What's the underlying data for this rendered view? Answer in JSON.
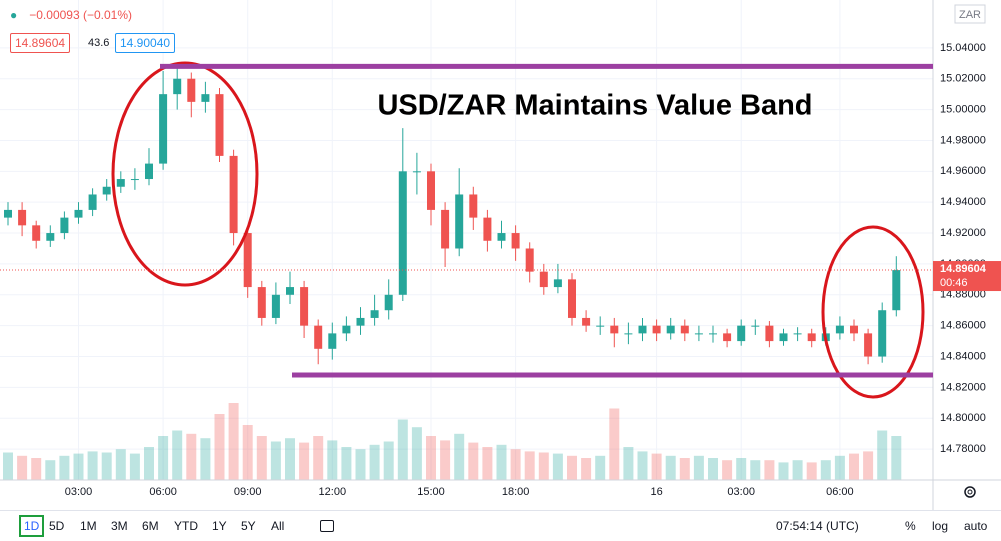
{
  "header": {
    "change": "−0.00093 (−0.01%)",
    "bid": "14.89604",
    "spread": "43.6",
    "ask": "14.90040"
  },
  "chart_data": {
    "type": "candlestick",
    "title": "USD/ZAR Maintains Value Band",
    "currency": "ZAR",
    "categories": [
      null,
      null,
      null,
      null,
      null,
      "03:00",
      null,
      null,
      null,
      null,
      null,
      "06:00",
      null,
      null,
      null,
      null,
      null,
      "09:00",
      null,
      null,
      null,
      null,
      null,
      "12:00",
      null,
      null,
      null,
      null,
      null,
      null,
      "15:00",
      null,
      null,
      null,
      null,
      null,
      "18:00",
      null,
      null,
      null,
      null,
      null,
      null,
      null,
      null,
      null,
      "16",
      null,
      null,
      null,
      null,
      null,
      "03:00",
      null,
      null,
      null,
      null,
      null,
      null,
      "06:00",
      null,
      null,
      null,
      null
    ],
    "open": [
      14.93,
      14.935,
      14.925,
      14.915,
      14.92,
      14.93,
      14.935,
      14.945,
      14.95,
      14.955,
      14.955,
      14.965,
      15.01,
      15.02,
      15.005,
      15.01,
      14.97,
      14.92,
      14.885,
      14.865,
      14.88,
      14.885,
      14.86,
      14.845,
      14.855,
      14.86,
      14.865,
      14.87,
      14.88,
      14.96,
      14.96,
      14.935,
      14.91,
      14.945,
      14.93,
      14.915,
      14.92,
      14.91,
      14.895,
      14.885,
      14.89,
      14.865,
      14.86,
      14.86,
      14.855,
      14.855,
      14.86,
      14.855,
      14.86,
      14.855,
      14.855,
      14.855,
      14.85,
      14.86,
      14.86,
      14.85,
      14.855,
      14.855,
      14.85,
      14.855,
      14.86,
      14.855,
      14.84,
      14.87
    ],
    "high": [
      14.94,
      14.94,
      14.928,
      14.925,
      14.934,
      14.94,
      14.949,
      14.955,
      14.96,
      14.962,
      14.975,
      15.025,
      15.028,
      15.024,
      15.018,
      15.014,
      14.974,
      14.924,
      14.889,
      14.888,
      14.895,
      14.889,
      14.864,
      14.862,
      14.866,
      14.872,
      14.88,
      14.89,
      14.988,
      14.972,
      14.965,
      14.94,
      14.962,
      14.95,
      14.935,
      14.928,
      14.925,
      14.914,
      14.9,
      14.9,
      14.894,
      14.87,
      14.866,
      14.865,
      14.862,
      14.865,
      14.864,
      14.865,
      14.864,
      14.86,
      14.86,
      14.858,
      14.864,
      14.864,
      14.863,
      14.858,
      14.859,
      14.858,
      14.859,
      14.866,
      14.864,
      14.858,
      14.875,
      14.905
    ],
    "low": [
      14.925,
      14.918,
      14.91,
      14.911,
      14.916,
      14.926,
      14.931,
      14.941,
      14.946,
      14.948,
      14.951,
      14.961,
      15.0,
      14.995,
      14.998,
      14.966,
      14.912,
      14.878,
      14.86,
      14.861,
      14.874,
      14.852,
      14.835,
      14.838,
      14.85,
      14.854,
      14.86,
      14.864,
      14.876,
      14.945,
      14.925,
      14.898,
      14.905,
      14.922,
      14.908,
      14.91,
      14.902,
      14.888,
      14.88,
      14.881,
      14.86,
      14.856,
      14.854,
      14.846,
      14.848,
      14.85,
      14.85,
      14.851,
      14.85,
      14.85,
      14.849,
      14.846,
      14.847,
      14.854,
      14.846,
      14.847,
      14.85,
      14.846,
      14.847,
      14.851,
      14.85,
      14.835,
      14.836,
      14.866
    ],
    "close": [
      14.935,
      14.925,
      14.915,
      14.92,
      14.93,
      14.935,
      14.945,
      14.95,
      14.955,
      14.955,
      14.965,
      15.01,
      15.02,
      15.005,
      15.01,
      14.97,
      14.92,
      14.885,
      14.865,
      14.88,
      14.885,
      14.86,
      14.845,
      14.855,
      14.86,
      14.865,
      14.87,
      14.88,
      14.96,
      14.96,
      14.935,
      14.91,
      14.945,
      14.93,
      14.915,
      14.92,
      14.91,
      14.895,
      14.885,
      14.89,
      14.865,
      14.86,
      14.86,
      14.855,
      14.855,
      14.86,
      14.855,
      14.86,
      14.855,
      14.855,
      14.855,
      14.85,
      14.86,
      14.86,
      14.85,
      14.855,
      14.855,
      14.85,
      14.855,
      14.86,
      14.855,
      14.84,
      14.87,
      14.896
    ],
    "volume": [
      25,
      22,
      20,
      18,
      22,
      24,
      26,
      25,
      28,
      24,
      30,
      40,
      45,
      42,
      38,
      60,
      70,
      50,
      40,
      35,
      38,
      34,
      40,
      36,
      30,
      28,
      32,
      35,
      55,
      48,
      40,
      36,
      42,
      34,
      30,
      32,
      28,
      26,
      25,
      24,
      22,
      20,
      22,
      65,
      30,
      26,
      24,
      22,
      20,
      22,
      20,
      18,
      20,
      18,
      18,
      16,
      18,
      16,
      18,
      22,
      24,
      26,
      45,
      40
    ],
    "volume_lim": [
      0,
      100
    ],
    "ylim": [
      14.76,
      15.071
    ],
    "yticks": [
      {
        "value": 14.78,
        "label": "14.78000"
      },
      {
        "value": 14.8,
        "label": "14.80000"
      },
      {
        "value": 14.82,
        "label": "14.82000"
      },
      {
        "value": 14.84,
        "label": "14.84000"
      },
      {
        "value": 14.86,
        "label": "14.86000"
      },
      {
        "value": 14.88,
        "label": "14.88000"
      },
      {
        "value": 14.9,
        "label": "14.90000"
      },
      {
        "value": 14.92,
        "label": "14.92000"
      },
      {
        "value": 14.94,
        "label": "14.94000"
      },
      {
        "value": 14.96,
        "label": "14.96000"
      },
      {
        "value": 14.98,
        "label": "14.98000"
      },
      {
        "value": 15,
        "label": "15.00000"
      },
      {
        "value": 15.02,
        "label": "15.02000"
      },
      {
        "value": 15.04,
        "label": "15.04000"
      }
    ],
    "grid": true,
    "up_color": "#26a69a",
    "down_color": "#ef5350",
    "levels": [
      15.028,
      14.828
    ],
    "level_color": "#9c3fa1",
    "current_price": {
      "value": 14.89604,
      "countdown": "00:46"
    }
  },
  "toolbar": {
    "ranges": [
      "1D",
      "5D",
      "1M",
      "3M",
      "6M",
      "YTD",
      "1Y",
      "5Y",
      "All"
    ],
    "clock": "07:54:14 (UTC)",
    "options": [
      "%",
      "log",
      "auto"
    ]
  }
}
